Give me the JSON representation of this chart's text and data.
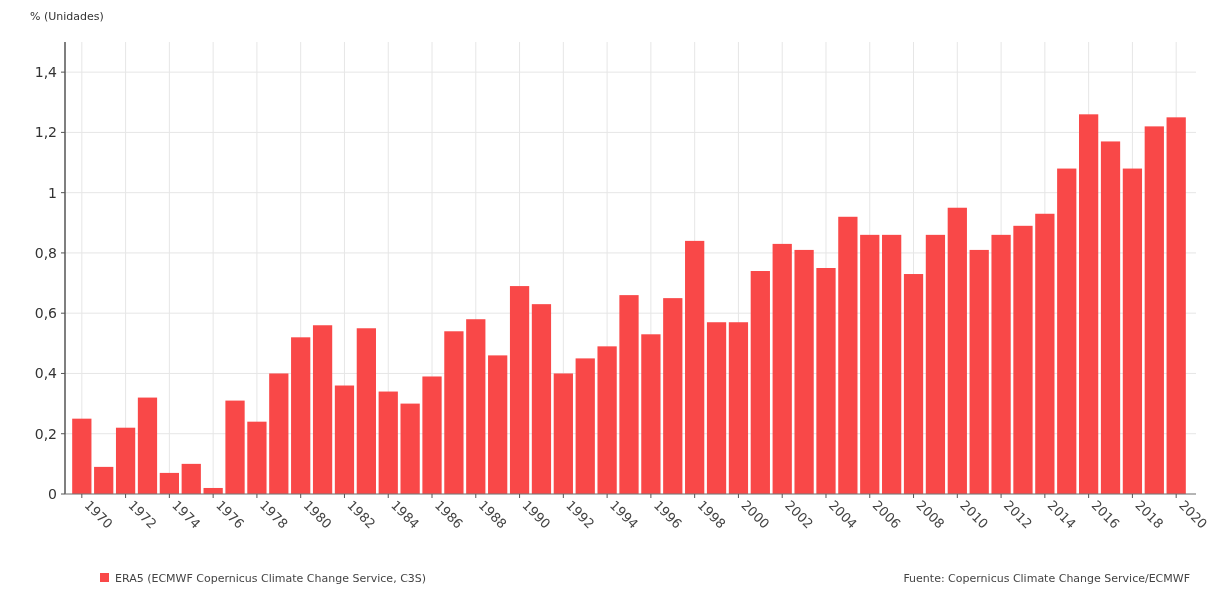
{
  "chart_data": {
    "type": "bar",
    "ylabel": "% (Unidades)",
    "categories": [
      "1970",
      null,
      "1972",
      null,
      "1974",
      null,
      "1976",
      null,
      "1978",
      null,
      "1980",
      null,
      "1982",
      null,
      "1984",
      null,
      "1986",
      null,
      "1988",
      null,
      "1990",
      null,
      "1992",
      null,
      "1994",
      null,
      "1996",
      null,
      "1998",
      null,
      "2000",
      null,
      "2002",
      null,
      "2004",
      null,
      "2006",
      null,
      "2008",
      null,
      "2010",
      null,
      "2012",
      null,
      "2014",
      null,
      "2016",
      null,
      "2018",
      null,
      "2020"
    ],
    "series": [
      {
        "name": "ERA5 (ECMWF Copernicus Climate Change Service, C3S)",
        "color": "#f94848",
        "values": [
          0.25,
          0.09,
          0.22,
          0.32,
          0.07,
          0.1,
          0.02,
          0.31,
          0.24,
          0.4,
          0.52,
          0.56,
          0.36,
          0.55,
          0.34,
          0.3,
          0.39,
          0.54,
          0.58,
          0.46,
          0.69,
          0.63,
          0.4,
          0.45,
          0.49,
          0.66,
          0.53,
          0.65,
          0.84,
          0.57,
          0.57,
          0.74,
          0.83,
          0.81,
          0.75,
          0.92,
          0.86,
          0.86,
          0.73,
          0.86,
          0.95,
          0.81,
          0.86,
          0.89,
          0.93,
          1.08,
          1.26,
          1.17,
          1.08,
          1.22,
          1.25
        ]
      }
    ],
    "ylim": [
      0,
      1.5
    ],
    "yticks": [
      0,
      {
        "value": 0.2,
        "label": "0,2"
      },
      {
        "value": 0.4,
        "label": "0,4"
      },
      {
        "value": 0.6,
        "label": "0,6"
      },
      {
        "value": 0.8,
        "label": "0,8"
      },
      1,
      {
        "value": 1.2,
        "label": "1,2"
      },
      {
        "value": 1.4,
        "label": "1,4"
      }
    ],
    "grid": true,
    "legend": "bottom left",
    "annotations": [
      "Fuente: Copernicus Climate Change Service/ECMWF"
    ]
  }
}
